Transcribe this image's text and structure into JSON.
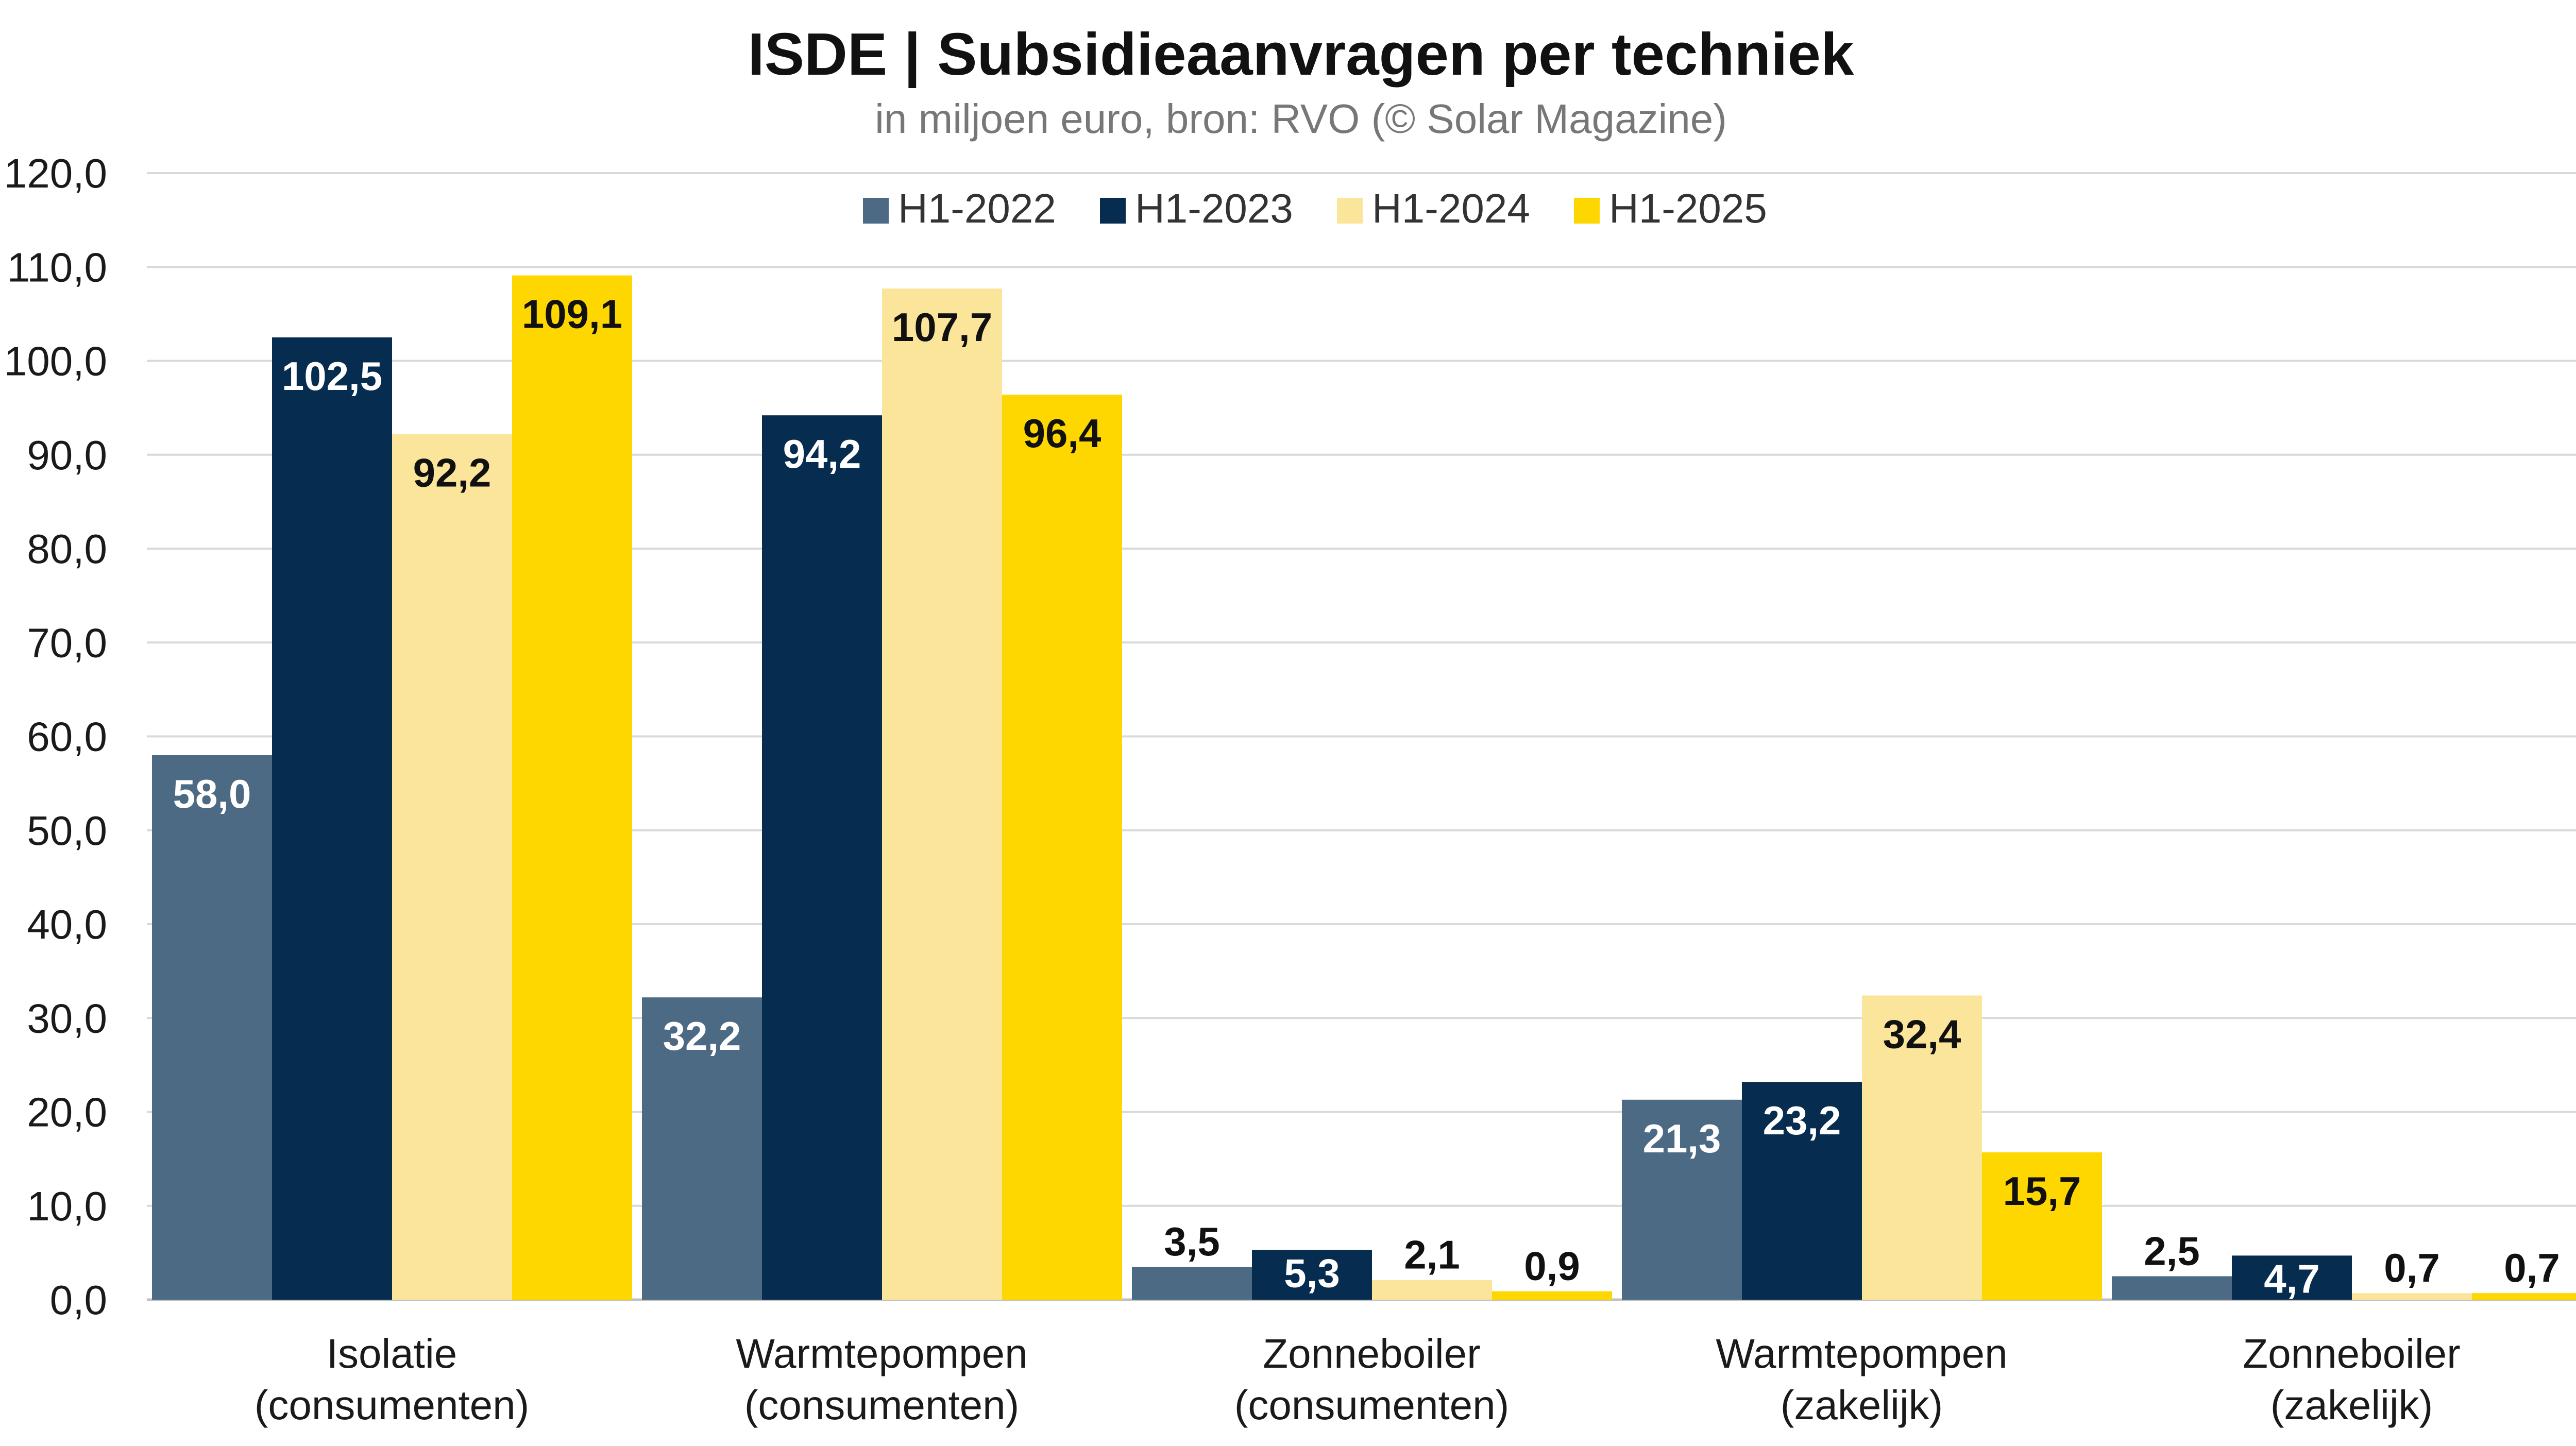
{
  "chart_data": {
    "type": "bar",
    "title": "ISDE | Subsidieaanvragen per techniek",
    "subtitle": "in miljoen euro, bron: RVO (© Solar Magazine)",
    "xlabel": "",
    "ylabel": "",
    "ylim": [
      0,
      120
    ],
    "yticks": [
      "0,0",
      "10,0",
      "20,0",
      "30,0",
      "40,0",
      "50,0",
      "60,0",
      "70,0",
      "80,0",
      "90,0",
      "100,0",
      "110,0",
      "120,0"
    ],
    "grid": true,
    "legend_position": "top-center",
    "categories": [
      [
        "Isolatie",
        "(consumenten)"
      ],
      [
        "Warmtepompen",
        "(consumenten)"
      ],
      [
        "Zonneboiler",
        "(consumenten)"
      ],
      [
        "Warmtepompen",
        "(zakelijk)"
      ],
      [
        "Zonneboiler",
        "(zakelijk)"
      ]
    ],
    "series": [
      {
        "name": "H1-2022",
        "color": "#4d6a85",
        "label_color": "#ffffff",
        "values": [
          58.0,
          32.2,
          3.5,
          21.3,
          2.5
        ],
        "labels": [
          "58,0",
          "32,2",
          "3,5",
          "21,3",
          "2,5"
        ]
      },
      {
        "name": "H1-2023",
        "color": "#062c50",
        "label_color": "#ffffff",
        "values": [
          102.5,
          94.2,
          5.3,
          23.2,
          4.7
        ],
        "labels": [
          "102,5",
          "94,2",
          "5,3",
          "23,2",
          "4,7"
        ]
      },
      {
        "name": "H1-2024",
        "color": "#fbe59a",
        "label_color": "#111111",
        "values": [
          92.2,
          107.7,
          2.1,
          32.4,
          0.7
        ],
        "labels": [
          "92,2",
          "107,7",
          "2,1",
          "32,4",
          "0,7"
        ]
      },
      {
        "name": "H1-2025",
        "color": "#ffd700",
        "label_color": "#111111",
        "values": [
          109.1,
          96.4,
          0.9,
          15.7,
          0.7
        ],
        "labels": [
          "109,1",
          "96,4",
          "0,9",
          "15,7",
          "0,7"
        ]
      }
    ]
  }
}
